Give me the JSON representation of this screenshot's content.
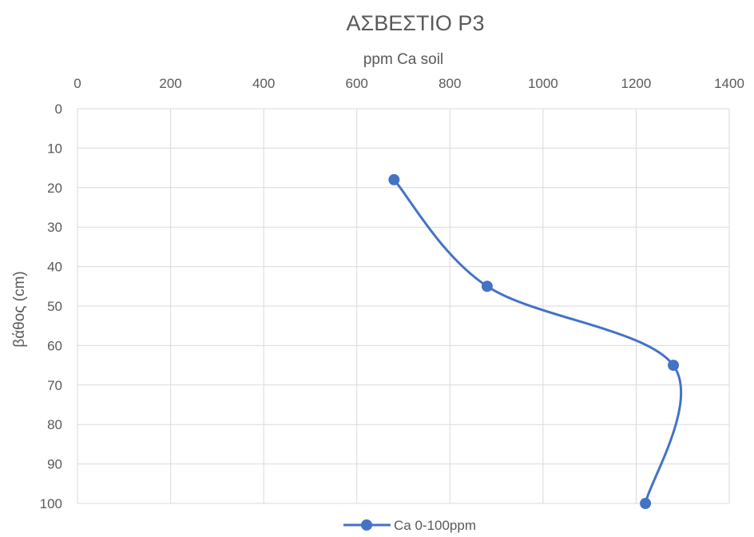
{
  "chart_data": {
    "type": "line",
    "title": "ΑΣΒΕΣΤΙΟ Ρ3",
    "xlabel": "ppm Ca soil",
    "ylabel": "βάθος  (cm)",
    "xlim": [
      0,
      1400
    ],
    "ylim": [
      0,
      100
    ],
    "x_axis_position": "top",
    "y_axis_reversed": true,
    "x_ticks": [
      "0",
      "200",
      "400",
      "600",
      "800",
      "1000",
      "1200",
      "1400"
    ],
    "y_ticks": [
      "0",
      "10",
      "20",
      "30",
      "40",
      "50",
      "60",
      "70",
      "80",
      "90",
      "100"
    ],
    "grid": true,
    "smooth": true,
    "legend_position": "bottom",
    "series": [
      {
        "name": "Ca 0-100ppm",
        "color": "#4472c4",
        "points": [
          {
            "x": 680,
            "y": 18
          },
          {
            "x": 880,
            "y": 45
          },
          {
            "x": 1280,
            "y": 65
          },
          {
            "x": 1220,
            "y": 100
          }
        ]
      }
    ]
  }
}
